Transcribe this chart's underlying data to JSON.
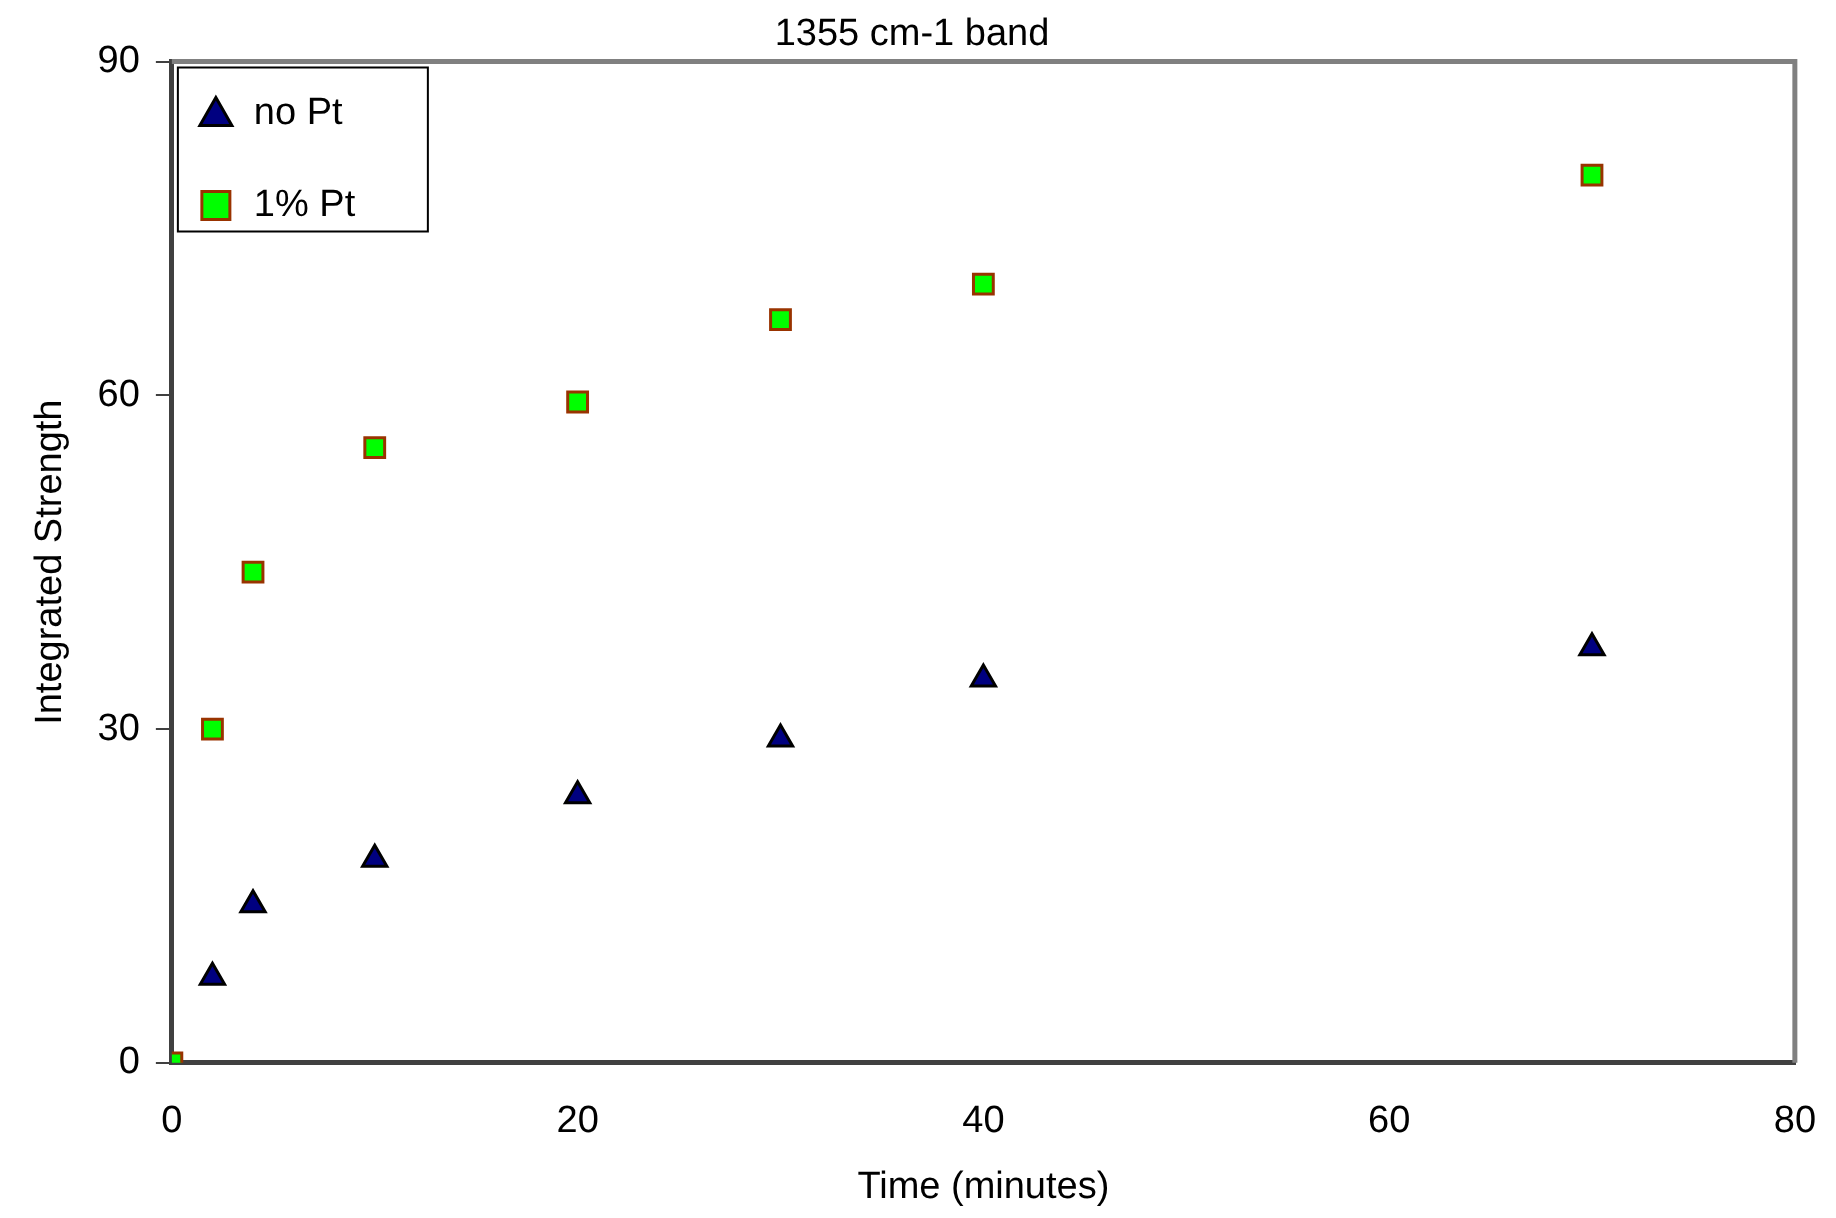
{
  "chart_data": {
    "type": "scatter",
    "title": "1355 cm-1 band",
    "xlabel": "Time (minutes)",
    "ylabel": "Integrated Strength",
    "xlim": [
      0,
      80
    ],
    "xticks": [
      0,
      20,
      40,
      60,
      80
    ],
    "ylim": [
      0,
      90
    ],
    "yticks": [
      0,
      30,
      60,
      90
    ],
    "grid": false,
    "legend": "top left",
    "series": [
      {
        "name": "no Pt",
        "color": "#000080",
        "marker": "triangle",
        "x": [
          2,
          4,
          10,
          20,
          30,
          40,
          70
        ],
        "values": [
          7.7,
          14.2,
          18.3,
          24,
          29.1,
          34.5,
          37.3
        ]
      },
      {
        "name": "1% Pt",
        "color": "#00ff00",
        "marker": "square",
        "x": [
          0,
          2,
          4,
          10,
          20,
          30,
          40,
          70
        ],
        "values": [
          0,
          30,
          44.1,
          55.3,
          59.4,
          66.8,
          70,
          79.8
        ]
      }
    ]
  }
}
